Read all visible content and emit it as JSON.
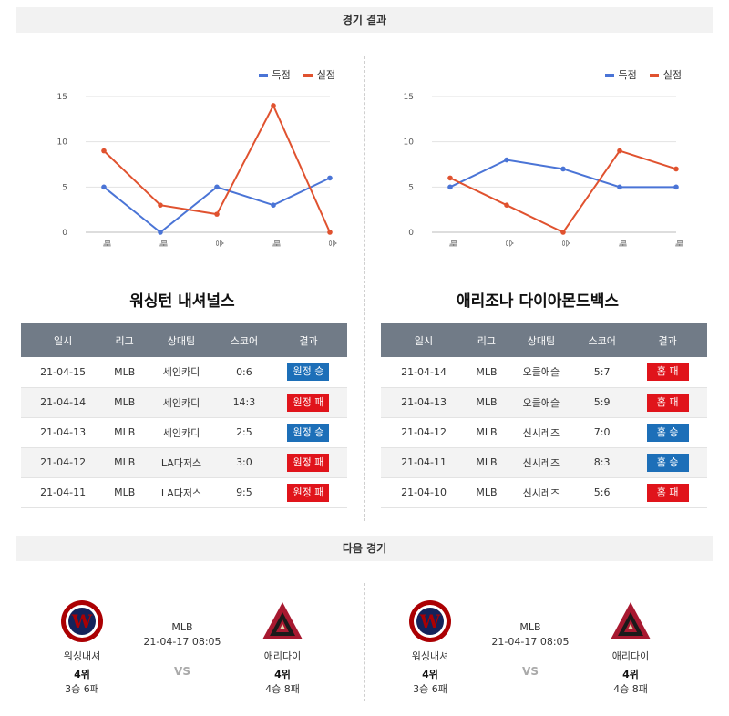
{
  "sections": {
    "results_title": "경기 결과",
    "next_title": "다음 경기"
  },
  "legend": {
    "scored": "득점",
    "conceded": "실점"
  },
  "colors": {
    "scored": "#4a74d6",
    "conceded": "#e0522f",
    "win": "#1d6fb8",
    "loss": "#e0141b",
    "header": "#717b87"
  },
  "chart_data": [
    {
      "type": "line",
      "categories": [
        "패",
        "패",
        "승",
        "패",
        "승"
      ],
      "series": [
        {
          "name": "득점",
          "values": [
            5,
            0,
            5,
            3,
            6
          ]
        },
        {
          "name": "실점",
          "values": [
            9,
            3,
            2,
            14,
            0
          ]
        }
      ],
      "ylim": [
        0,
        15
      ],
      "yticks": [
        0,
        5,
        10,
        15
      ],
      "grid": true,
      "legend_position": "top-right"
    },
    {
      "type": "line",
      "categories": [
        "패",
        "승",
        "승",
        "패",
        "패"
      ],
      "series": [
        {
          "name": "득점",
          "values": [
            5,
            8,
            7,
            5,
            5
          ]
        },
        {
          "name": "실점",
          "values": [
            6,
            3,
            0,
            9,
            7
          ]
        }
      ],
      "ylim": [
        0,
        15
      ],
      "yticks": [
        0,
        5,
        10,
        15
      ],
      "grid": true,
      "legend_position": "top-right"
    }
  ],
  "teams": [
    {
      "name": "워싱턴 내셔널스",
      "headers": [
        "일시",
        "리그",
        "상대팀",
        "스코어",
        "결과"
      ],
      "rows": [
        {
          "date": "21-04-15",
          "league": "MLB",
          "opponent": "세인카디",
          "score": "0:6",
          "result": "원정 승",
          "outcome": "win"
        },
        {
          "date": "21-04-14",
          "league": "MLB",
          "opponent": "세인카디",
          "score": "14:3",
          "result": "원정 패",
          "outcome": "loss"
        },
        {
          "date": "21-04-13",
          "league": "MLB",
          "opponent": "세인카디",
          "score": "2:5",
          "result": "원정 승",
          "outcome": "win"
        },
        {
          "date": "21-04-12",
          "league": "MLB",
          "opponent": "LA다저스",
          "score": "3:0",
          "result": "원정 패",
          "outcome": "loss"
        },
        {
          "date": "21-04-11",
          "league": "MLB",
          "opponent": "LA다저스",
          "score": "9:5",
          "result": "원정 패",
          "outcome": "loss"
        }
      ]
    },
    {
      "name": "애리조나 다이아몬드백스",
      "headers": [
        "일시",
        "리그",
        "상대팀",
        "스코어",
        "결과"
      ],
      "rows": [
        {
          "date": "21-04-14",
          "league": "MLB",
          "opponent": "오클애슬",
          "score": "5:7",
          "result": "홈 패",
          "outcome": "loss"
        },
        {
          "date": "21-04-13",
          "league": "MLB",
          "opponent": "오클애슬",
          "score": "5:9",
          "result": "홈 패",
          "outcome": "loss"
        },
        {
          "date": "21-04-12",
          "league": "MLB",
          "opponent": "신시레즈",
          "score": "7:0",
          "result": "홈 승",
          "outcome": "win"
        },
        {
          "date": "21-04-11",
          "league": "MLB",
          "opponent": "신시레즈",
          "score": "8:3",
          "result": "홈 승",
          "outcome": "win"
        },
        {
          "date": "21-04-10",
          "league": "MLB",
          "opponent": "신시레즈",
          "score": "5:6",
          "result": "홈 패",
          "outcome": "loss"
        }
      ]
    }
  ],
  "next_matches": [
    {
      "home": {
        "short": "워싱내셔",
        "rank": "4위",
        "record": "3승 6패",
        "logo": "nationals-logo"
      },
      "away": {
        "short": "애리다이",
        "rank": "4위",
        "record": "4승 8패",
        "logo": "diamondbacks-logo"
      },
      "league": "MLB",
      "datetime": "21-04-17 08:05",
      "vs": "VS"
    },
    {
      "home": {
        "short": "워싱내셔",
        "rank": "4위",
        "record": "3승 6패",
        "logo": "nationals-logo"
      },
      "away": {
        "short": "애리다이",
        "rank": "4위",
        "record": "4승 8패",
        "logo": "diamondbacks-logo"
      },
      "league": "MLB",
      "datetime": "21-04-17 08:05",
      "vs": "VS"
    }
  ]
}
